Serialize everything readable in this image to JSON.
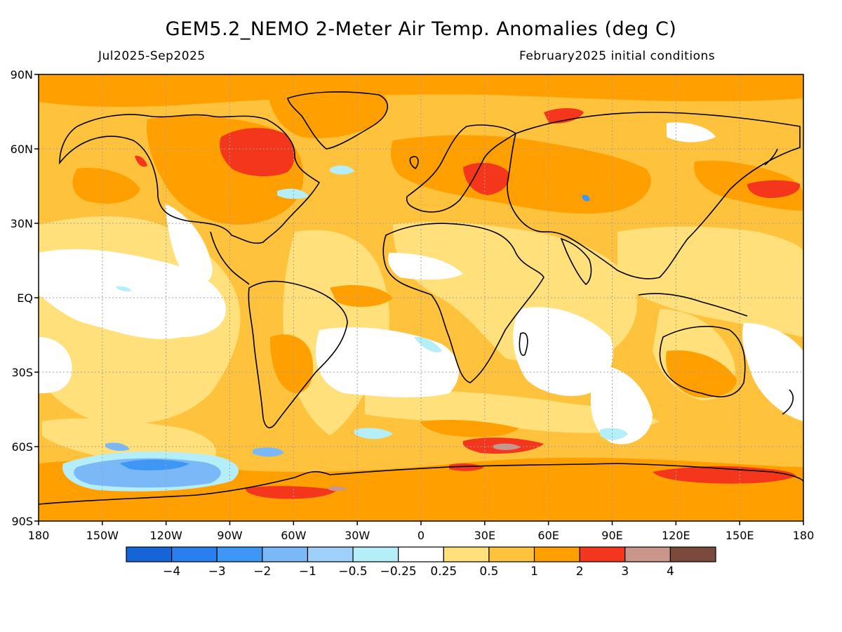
{
  "header": {
    "title": "GEM5.2_NEMO 2-Meter Air Temp. Anomalies (deg C)",
    "period": "Jul2025-Sep2025",
    "init": "February2025 initial conditions"
  },
  "map": {
    "lon_ticks": [
      "180",
      "150W",
      "120W",
      "90W",
      "60W",
      "30W",
      "0",
      "30E",
      "60E",
      "90E",
      "120E",
      "150E",
      "180"
    ],
    "lat_ticks": [
      "90N",
      "60N",
      "30N",
      "EQ",
      "30S",
      "60S",
      "90S"
    ],
    "ocean_background_color": "#ffc23c"
  },
  "colorbar": {
    "labels": [
      "-4",
      "-3",
      "-2",
      "-1",
      "-0.5",
      "-0.25",
      "0.25",
      "0.5",
      "1",
      "2",
      "3",
      "4"
    ],
    "colors": [
      "#1565d8",
      "#2a7ff0",
      "#3f97f5",
      "#7ab8f8",
      "#9fd0fa",
      "#b4eef8",
      "#ffffff",
      "#ffe07a",
      "#ffc23c",
      "#ffa000",
      "#f4361c",
      "#c8968a",
      "#7a4a3c"
    ]
  }
}
